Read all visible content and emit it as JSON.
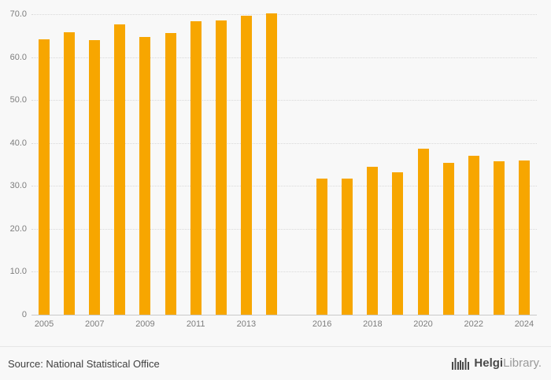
{
  "chart_data": {
    "type": "bar",
    "title": "",
    "xlabel": "",
    "ylabel": "",
    "x": [
      "2005",
      "2006",
      "2007",
      "2008",
      "2009",
      "2010",
      "2011",
      "2012",
      "2013",
      "2014",
      "2015",
      "2016",
      "2017",
      "2018",
      "2019",
      "2020",
      "2021",
      "2022",
      "2023",
      "2024"
    ],
    "values": [
      64.2,
      65.8,
      64.0,
      67.6,
      64.7,
      65.6,
      68.4,
      68.5,
      69.7,
      70.2,
      null,
      31.7,
      31.7,
      34.4,
      33.2,
      38.7,
      35.3,
      37.0,
      35.8,
      36.0
    ],
    "shown_x_labels": [
      "2005",
      "2007",
      "2009",
      "2011",
      "2013",
      "2016",
      "2018",
      "2020",
      "2022",
      "2024"
    ],
    "ylim": [
      0,
      70
    ],
    "ytick_step": 10,
    "ytick_labels": [
      "0",
      "10.0",
      "20.0",
      "30.0",
      "40.0",
      "50.0",
      "60.0",
      "70.0"
    ],
    "bar_color": "#F7A600",
    "grid": "dotted-horizontal",
    "legend": "none"
  },
  "footer": {
    "source": "Source: National Statistical Office",
    "logo_primary": "Helgi",
    "logo_secondary": "Library."
  }
}
